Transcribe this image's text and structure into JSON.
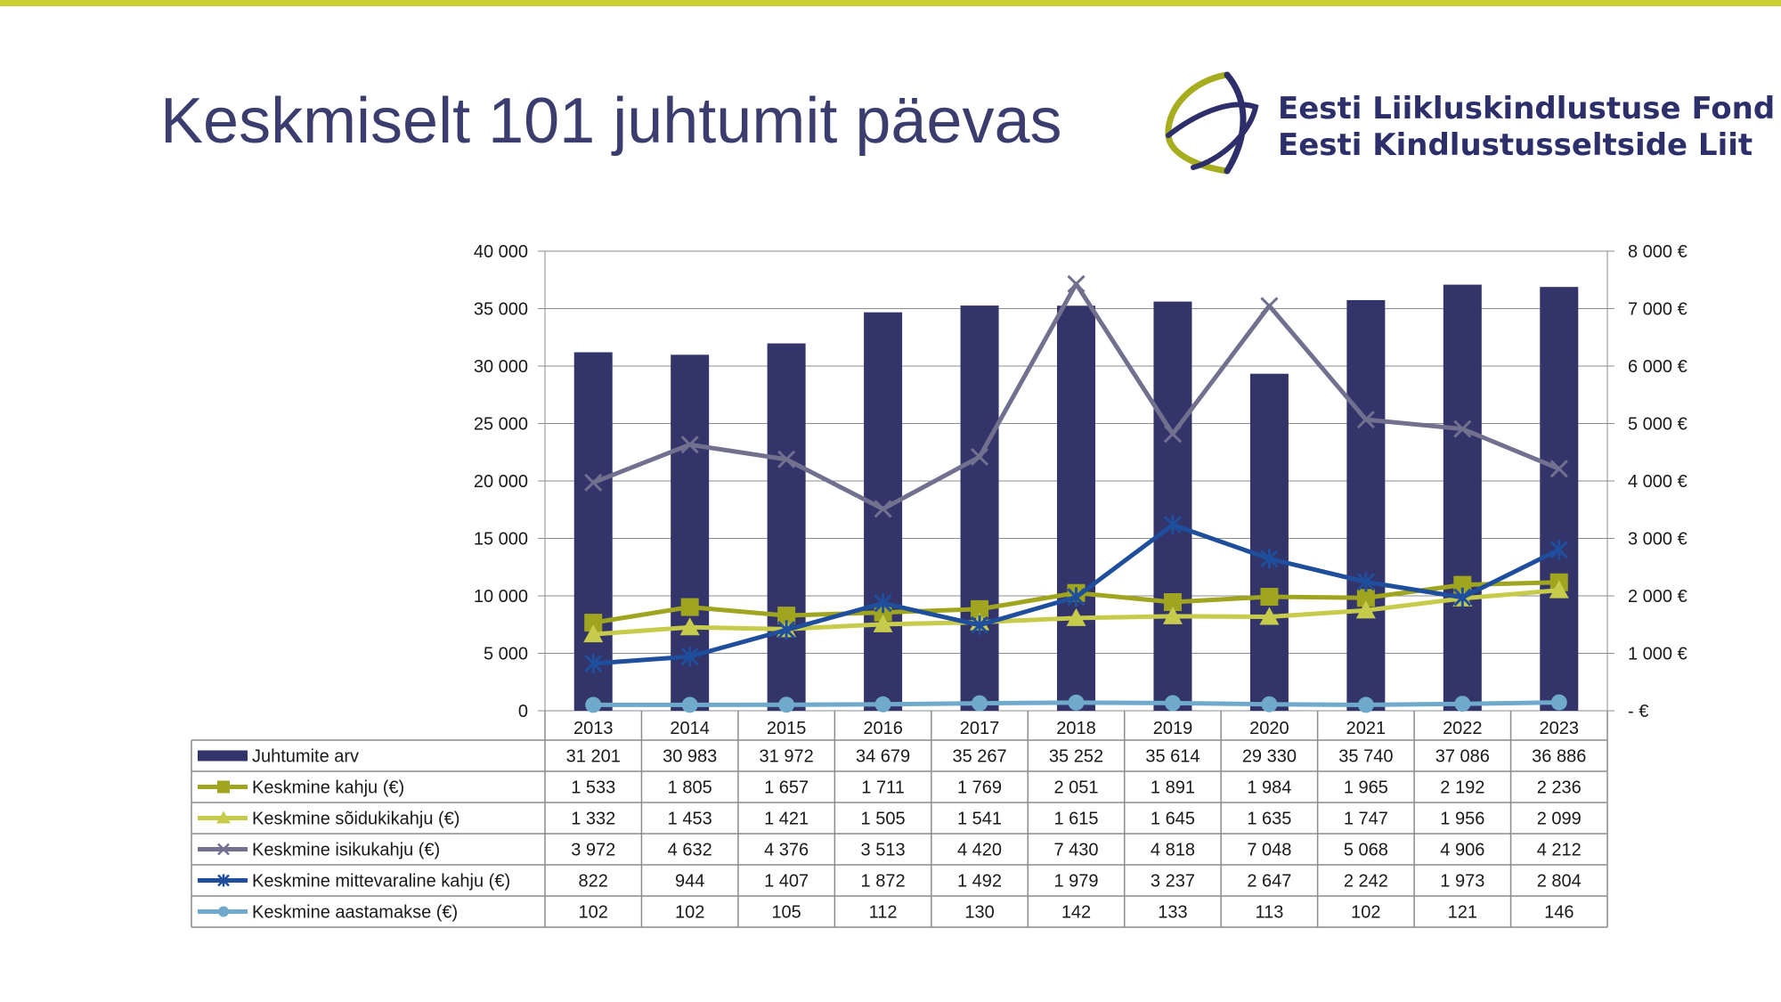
{
  "slide": {
    "title": "Keskmiselt 101 juhtumit päevas",
    "accent_bar_color": "#c7cf32"
  },
  "logo": {
    "line1": "Eesti Liikluskindlustuse Fond",
    "line2": "Eesti Kindlustusseltside Liit",
    "colors": {
      "green": "#a6ad1f",
      "navy": "#2d2f6b"
    }
  },
  "chart_data": {
    "type": "bar",
    "categories": [
      "2013",
      "2014",
      "2015",
      "2016",
      "2017",
      "2018",
      "2019",
      "2020",
      "2021",
      "2022",
      "2023"
    ],
    "left_axis": {
      "ticks": [
        "0",
        "5 000",
        "10 000",
        "15 000",
        "20 000",
        "25 000",
        "30 000",
        "35 000",
        "40 000"
      ],
      "range": [
        0,
        40000
      ]
    },
    "right_axis": {
      "ticks": [
        "- €",
        "1 000 €",
        "2 000 €",
        "3 000 €",
        "4 000 €",
        "5 000 €",
        "6 000 €",
        "7 000 €",
        "8 000 €"
      ],
      "range": [
        0,
        8000
      ]
    },
    "grid": true,
    "legend": "data table",
    "series": [
      {
        "name": "Juhtumite arv",
        "kind": "bar",
        "axis": "left",
        "color": "#33346a",
        "marker": "none",
        "values": [
          31201,
          30983,
          31972,
          34679,
          35267,
          35252,
          35614,
          29330,
          35740,
          37086,
          36886
        ],
        "labels": [
          "31 201",
          "30 983",
          "31 972",
          "34 679",
          "35 267",
          "35 252",
          "35 614",
          "29 330",
          "35 740",
          "37 086",
          "36 886"
        ]
      },
      {
        "name": "Keskmine kahju (€)",
        "kind": "line",
        "axis": "right",
        "color": "#9fa51f",
        "marker": "square",
        "values": [
          1533,
          1805,
          1657,
          1711,
          1769,
          2051,
          1891,
          1984,
          1965,
          2192,
          2236
        ],
        "labels": [
          "1 533",
          "1 805",
          "1 657",
          "1 711",
          "1 769",
          "2 051",
          "1 891",
          "1 984",
          "1 965",
          "2 192",
          "2 236"
        ]
      },
      {
        "name": "Keskmine sõidukikahju (€)",
        "kind": "line",
        "axis": "right",
        "color": "#c6cb4c",
        "marker": "triangle",
        "values": [
          1332,
          1453,
          1421,
          1505,
          1541,
          1615,
          1645,
          1635,
          1747,
          1956,
          2099
        ],
        "labels": [
          "1 332",
          "1 453",
          "1 421",
          "1 505",
          "1 541",
          "1 615",
          "1 645",
          "1 635",
          "1 747",
          "1 956",
          "2 099"
        ]
      },
      {
        "name": "Keskmine isikukahju (€)",
        "kind": "line",
        "axis": "right",
        "color": "#71718f",
        "marker": "cross",
        "values": [
          3972,
          4632,
          4376,
          3513,
          4420,
          7430,
          4818,
          7048,
          5068,
          4906,
          4212
        ],
        "labels": [
          "3 972",
          "4 632",
          "4 376",
          "3 513",
          "4 420",
          "7 430",
          "4 818",
          "7 048",
          "5 068",
          "4 906",
          "4 212"
        ]
      },
      {
        "name": "Keskmine mittevaraline kahju (€)",
        "kind": "line",
        "axis": "right",
        "color": "#1f4e9c",
        "marker": "star",
        "values": [
          822,
          944,
          1407,
          1872,
          1492,
          1979,
          3237,
          2647,
          2242,
          1973,
          2804
        ],
        "labels": [
          "822",
          "944",
          "1 407",
          "1 872",
          "1 492",
          "1 979",
          "3 237",
          "2 647",
          "2 242",
          "1 973",
          "2 804"
        ]
      },
      {
        "name": "Keskmine aastamakse (€)",
        "kind": "line",
        "axis": "right",
        "color": "#6fa9cc",
        "marker": "circle",
        "values": [
          102,
          102,
          105,
          112,
          130,
          142,
          133,
          113,
          102,
          121,
          146
        ],
        "labels": [
          "102",
          "102",
          "105",
          "112",
          "130",
          "142",
          "133",
          "113",
          "102",
          "121",
          "146"
        ]
      }
    ]
  }
}
